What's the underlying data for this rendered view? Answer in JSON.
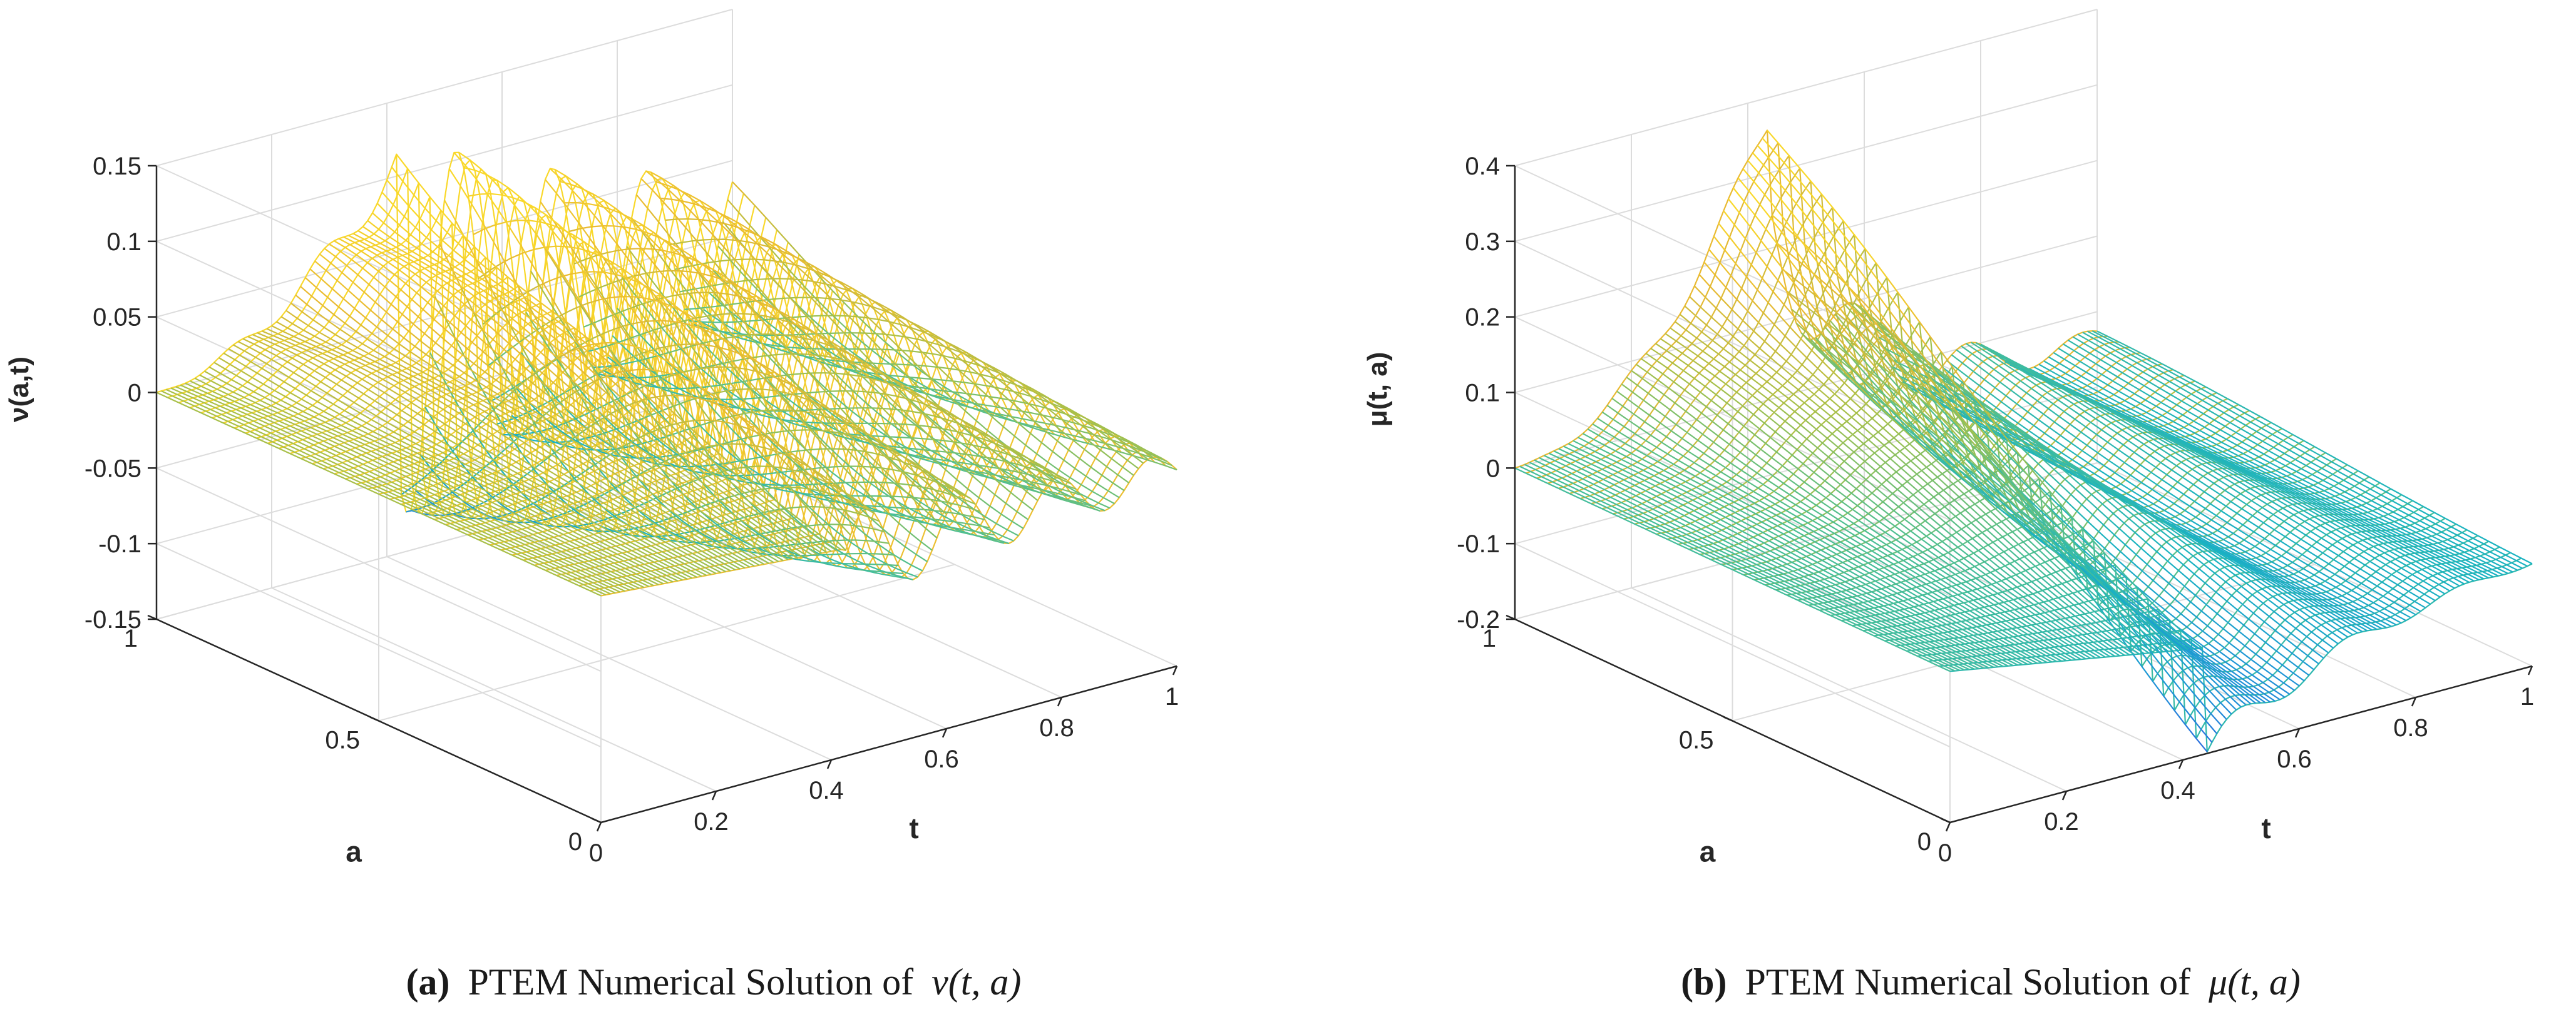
{
  "chart_data": [
    {
      "type": "surface",
      "panel": "a",
      "caption": {
        "label": "(a)",
        "text": "PTEM Numerical Solution of",
        "math": "ν(t, a)"
      },
      "xlabel": "t",
      "ylabel": "a",
      "zlabel": "ν(a,t)",
      "xlim": [
        0,
        1
      ],
      "ylim": [
        0,
        1
      ],
      "zlim": [
        -0.15,
        0.15
      ],
      "xticks": [
        0,
        0.2,
        0.4,
        0.6,
        0.8,
        1
      ],
      "yticks": [
        0,
        0.5,
        1
      ],
      "zticks": [
        -0.15,
        -0.1,
        -0.05,
        0,
        0.05,
        0.1,
        0.15
      ],
      "xtick_labels": [
        "0",
        "0.2",
        "0.4",
        "0.6",
        "0.8",
        "1"
      ],
      "ytick_labels": [
        "0",
        "0.5",
        "1"
      ],
      "ztick_labels": [
        "-0.15",
        "-0.1",
        "-0.05",
        "0",
        "0.05",
        "0.1",
        "0.15"
      ],
      "grid": true,
      "colormap": [
        "#3e26a8",
        "#2f69e0",
        "#1f95d7",
        "#1ab3c2",
        "#4cbf93",
        "#a6c04a",
        "#e9ba32",
        "#f9d82a"
      ],
      "surface_peak_approx": {
        "t": 0.45,
        "a": 0.8,
        "value": 0.13
      }
    },
    {
      "type": "surface",
      "panel": "b",
      "caption": {
        "label": "(b)",
        "text": "PTEM Numerical Solution of",
        "math": "μ(t, a)"
      },
      "xlabel": "t",
      "ylabel": "a",
      "zlabel": "μ(t, a)",
      "xlim": [
        0,
        1
      ],
      "ylim": [
        0,
        1
      ],
      "zlim": [
        -0.2,
        0.4
      ],
      "xticks": [
        0,
        0.2,
        0.4,
        0.6,
        0.8,
        1
      ],
      "yticks": [
        0,
        0.5,
        1
      ],
      "zticks": [
        -0.2,
        -0.1,
        0,
        0.1,
        0.2,
        0.3,
        0.4
      ],
      "xtick_labels": [
        "0",
        "0.2",
        "0.4",
        "0.6",
        "0.8",
        "1"
      ],
      "ytick_labels": [
        "0",
        "0.5",
        "1"
      ],
      "ztick_labels": [
        "-0.2",
        "-0.1",
        "0",
        "0.1",
        "0.2",
        "0.3",
        "0.4"
      ],
      "grid": true,
      "colormap": [
        "#3e26a8",
        "#2f69e0",
        "#1f95d7",
        "#1ab3c2",
        "#4cbf93",
        "#a6c04a",
        "#e9ba32",
        "#f9d82a"
      ],
      "surface_peak_approx": {
        "t": 0.45,
        "a": 0.85,
        "value": 0.42
      }
    }
  ]
}
